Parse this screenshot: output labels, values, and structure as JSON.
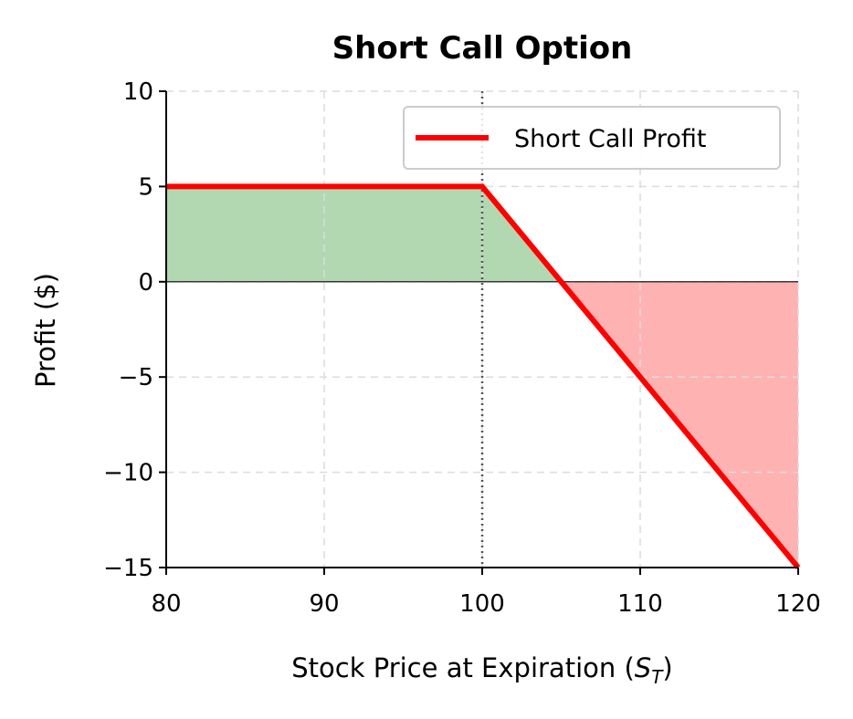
{
  "chart_data": {
    "type": "line",
    "title": "Short Call Option",
    "xlabel_main": "Stock Price at Expiration (",
    "xlabel_symbol": "S",
    "xlabel_subscript": "T",
    "xlabel_close": ")",
    "ylabel": "Profit ($)",
    "xlim": [
      80,
      120
    ],
    "ylim": [
      -15,
      10
    ],
    "xticks": [
      80,
      90,
      100,
      110,
      120
    ],
    "xtick_labels": [
      "80",
      "90",
      "100",
      "110",
      "120"
    ],
    "yticks": [
      10,
      5,
      0,
      -5,
      -10,
      -15
    ],
    "ytick_labels": [
      "10",
      "5",
      "0",
      "−5",
      "−10",
      "−15"
    ],
    "grid": true,
    "strike_line_x": 100,
    "legend": {
      "position": "top-right",
      "entries": [
        "Short Call Profit"
      ]
    },
    "series": [
      {
        "name": "Short Call Profit",
        "color": "#ff0000",
        "x": [
          80,
          100,
          120
        ],
        "y": [
          5,
          5,
          -15
        ]
      }
    ],
    "fills": {
      "profit_color": "#b2d8b2",
      "loss_color": "#ffb2b2"
    }
  }
}
